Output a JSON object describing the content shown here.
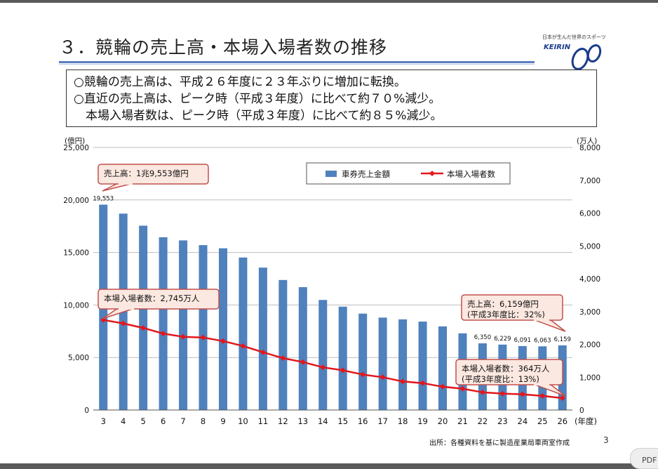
{
  "slide": {
    "title": "３．競輪の売上高・本場入場者数の推移",
    "logo_tagline": "日本が生んだ世界のスポーツ",
    "logo_word": "KEIRIN",
    "summary": [
      "○競輪の売上高は、平成２６年度に２３年ぶりに増加に転換。",
      "○直近の売上高は、ピーク時（平成３年度）に比べて約７０%減少。",
      "　本場入場者数は、ピーク時（平成３年度）に比べて約８５%減少。"
    ],
    "source": "出所：各種資料を基に製造産業局車両室作成",
    "page_number": "3",
    "pdf_button": "PDF"
  },
  "chart_data": {
    "type": "bar",
    "x_unit": "(年度)",
    "categories": [
      "3",
      "4",
      "5",
      "6",
      "7",
      "8",
      "9",
      "10",
      "11",
      "12",
      "13",
      "14",
      "15",
      "16",
      "17",
      "18",
      "19",
      "20",
      "21",
      "22",
      "23",
      "24",
      "25",
      "26"
    ],
    "series": [
      {
        "name": "車券売上金額",
        "type": "bar",
        "axis": "left",
        "values": [
          19553,
          18700,
          17550,
          16450,
          16150,
          15700,
          15400,
          14520,
          13560,
          12380,
          11700,
          10480,
          9840,
          9180,
          8800,
          8630,
          8420,
          7960,
          7300,
          6350,
          6229,
          6091,
          6063,
          6159
        ]
      },
      {
        "name": "本場入場者数",
        "type": "line",
        "axis": "right",
        "values": [
          2745,
          2640,
          2500,
          2330,
          2230,
          2210,
          2100,
          1950,
          1760,
          1580,
          1460,
          1300,
          1210,
          1080,
          1000,
          870,
          820,
          710,
          650,
          540,
          500,
          480,
          430,
          364
        ]
      }
    ],
    "data_labels": [
      {
        "index": 0,
        "text": "19,553"
      },
      {
        "index": 19,
        "text": "6,350"
      },
      {
        "index": 20,
        "text": "6,229"
      },
      {
        "index": 21,
        "text": "6,091"
      },
      {
        "index": 22,
        "text": "6,063"
      },
      {
        "index": 23,
        "text": "6,159"
      }
    ],
    "y_left": {
      "unit": "(億円)",
      "range": [
        0,
        25000
      ],
      "ticks": [
        "0",
        "5,000",
        "10,000",
        "15,000",
        "20,000",
        "25,000"
      ]
    },
    "y_right": {
      "unit": "(万人)",
      "range": [
        0,
        8000
      ],
      "ticks": [
        "0",
        "1,000",
        "2,000",
        "3,000",
        "4,000",
        "5,000",
        "6,000",
        "7,000",
        "8,000"
      ]
    },
    "grid": true,
    "legend_position": "top-center",
    "colors": {
      "bar": "#4f81bd",
      "line": "#e3171b",
      "callout_border": "#c0504d",
      "callout_fill": "#fbe8e0"
    },
    "callouts": [
      {
        "lines": [
          "売上高：1兆9,553億円"
        ]
      },
      {
        "lines": [
          "本場入場者数：2,745万人"
        ]
      },
      {
        "lines": [
          "売上高：6,159億円",
          "(平成3年度比：32%)"
        ]
      },
      {
        "lines": [
          "本場入場者数：364万人",
          "(平成3年度比：13%)"
        ]
      }
    ]
  }
}
